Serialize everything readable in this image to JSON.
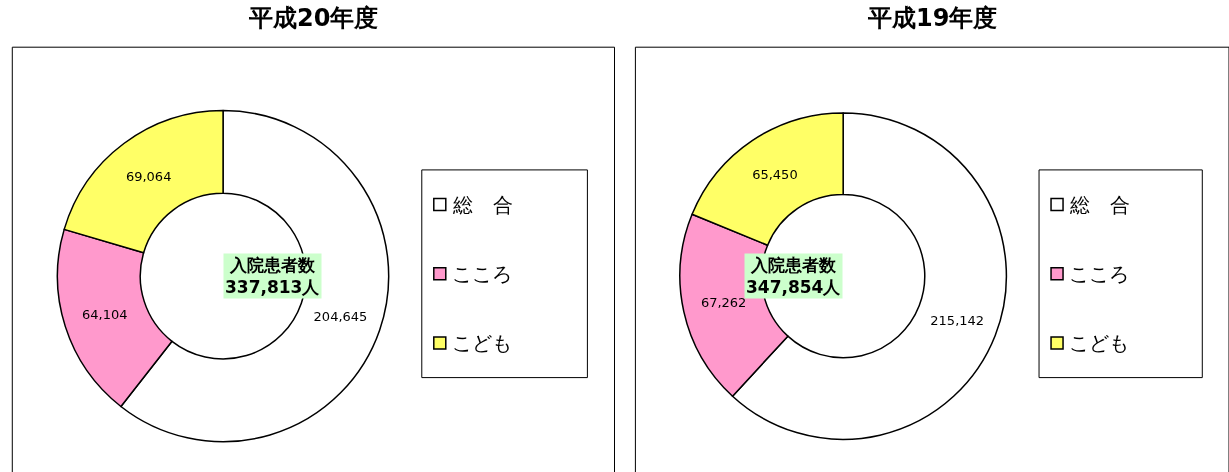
{
  "chart_data": [
    {
      "type": "donut",
      "title": "平成20年度",
      "categories": [
        "総　合",
        "こころ",
        "こども"
      ],
      "values": [
        204645,
        64104,
        69064
      ],
      "value_labels": [
        "204,645",
        "64,104",
        "69,064"
      ],
      "colors": [
        "#ffffff",
        "#ff99cc",
        "#ffff66"
      ],
      "legend": "right",
      "annotations": [
        "入院患者数\n337,813人"
      ]
    },
    {
      "type": "donut",
      "title": "平成19年度",
      "categories": [
        "総　合",
        "こころ",
        "こども"
      ],
      "values": [
        215142,
        67262,
        65450
      ],
      "value_labels": [
        "215,142",
        "67,262",
        "65,450"
      ],
      "colors": [
        "#ffffff",
        "#ff99cc",
        "#ffff66"
      ],
      "legend": "right",
      "annotations": [
        "入院患者数\n347,854人"
      ]
    }
  ]
}
